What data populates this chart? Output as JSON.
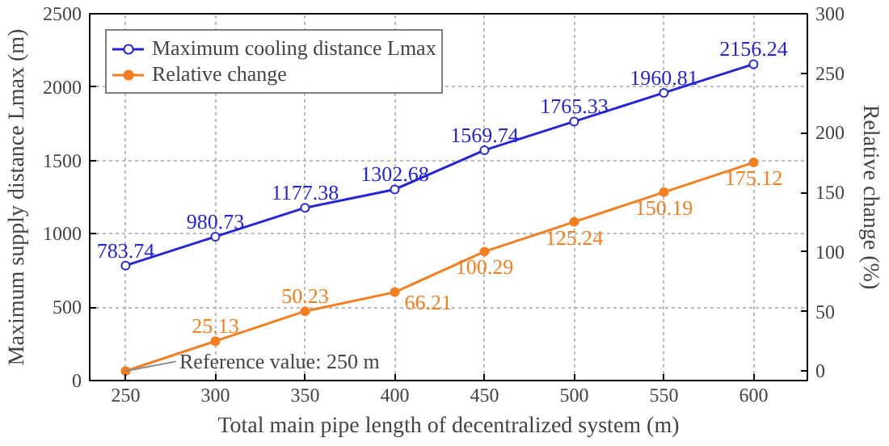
{
  "chart_data": {
    "type": "line",
    "xlabel": "Total main pipe length of decentralized system (m)",
    "ylabel": "Maximum supply distance Lmax (m)",
    "y2label": "Relative change (%)",
    "x": [
      250,
      300,
      350,
      400,
      450,
      500,
      550,
      600
    ],
    "series": [
      {
        "name": "Maximum cooling distance Lmax",
        "color": "#2424d8",
        "values": [
          783.74,
          980.73,
          1177.38,
          1302.68,
          1569.74,
          1765.33,
          1960.81,
          2156.24
        ],
        "value_labels": [
          "783.74",
          "980.73",
          "1177.38",
          "1302.68",
          "1569.74",
          "1765.33",
          "1960.81",
          "2156.24"
        ]
      },
      {
        "name": "Relative change",
        "color": "#f57f20",
        "axis": "y2",
        "values": [
          0,
          25.13,
          50.23,
          66.21,
          100.29,
          125.24,
          150.19,
          175.12
        ],
        "value_labels": [
          null,
          "25.13",
          "50.23",
          "66.21",
          "100.29",
          "125.24",
          "150.19",
          "175.12"
        ]
      }
    ],
    "annotations": [
      {
        "text": "Reference value: 250 m",
        "x": 250,
        "y": 65
      }
    ],
    "xlim": [
      230,
      630
    ],
    "xticks": [
      250,
      300,
      350,
      400,
      450,
      500,
      550,
      600
    ],
    "ylim": [
      0,
      2500
    ],
    "yticks": [
      0,
      500,
      1000,
      1500,
      2000,
      2500
    ],
    "y2lim": [
      -8,
      300
    ],
    "y2ticks": [
      0,
      50,
      100,
      150,
      200,
      250,
      300
    ],
    "grid": true,
    "legend": "top left",
    "marker": "circle"
  }
}
